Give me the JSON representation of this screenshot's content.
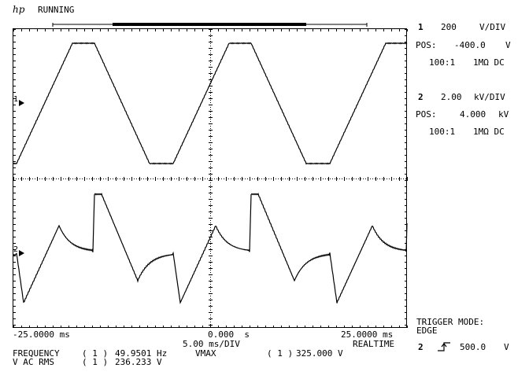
{
  "header": {
    "logo": "hp",
    "status": "RUNNING"
  },
  "channel1": {
    "num": "1",
    "scale": "200",
    "unit": "V/DIV",
    "pos_label": "POS:",
    "pos": "-400.0",
    "pos_unit": "V",
    "probe": "100:1",
    "coupling": "1MΩ DC",
    "marker": "1"
  },
  "channel2": {
    "num": "2",
    "scale": "2.00",
    "unit": "kV/DIV",
    "pos_label": "POS:",
    "pos": "4.000",
    "pos_unit": "kV",
    "probe": "100:1",
    "coupling": "1MΩ DC",
    "marker": "2"
  },
  "timebase": {
    "left": "-25.0000 ms",
    "center": "0.000  s",
    "right": "25.0000 ms",
    "per_div": "5.00 ms/DIV",
    "mode": "REALTIME"
  },
  "trigger": {
    "mode_label": "TRIGGER MODE:",
    "mode": "EDGE",
    "source": "2",
    "level": "500.0",
    "level_unit": "V",
    "slope_icon": "rising-edge-icon"
  },
  "measurements": [
    {
      "name": "FREQUENCY",
      "channel": "( 1 )",
      "value": "49.9501 Hz"
    },
    {
      "name": "V AC RMS",
      "channel": "( 1 )",
      "value": "236.233 V"
    },
    {
      "name": "VMAX",
      "channel": "( 1 )",
      "value": "325.000 V"
    }
  ],
  "colors": {
    "trace": "#000000",
    "grid": "#000000",
    "background": "#ffffff"
  }
}
